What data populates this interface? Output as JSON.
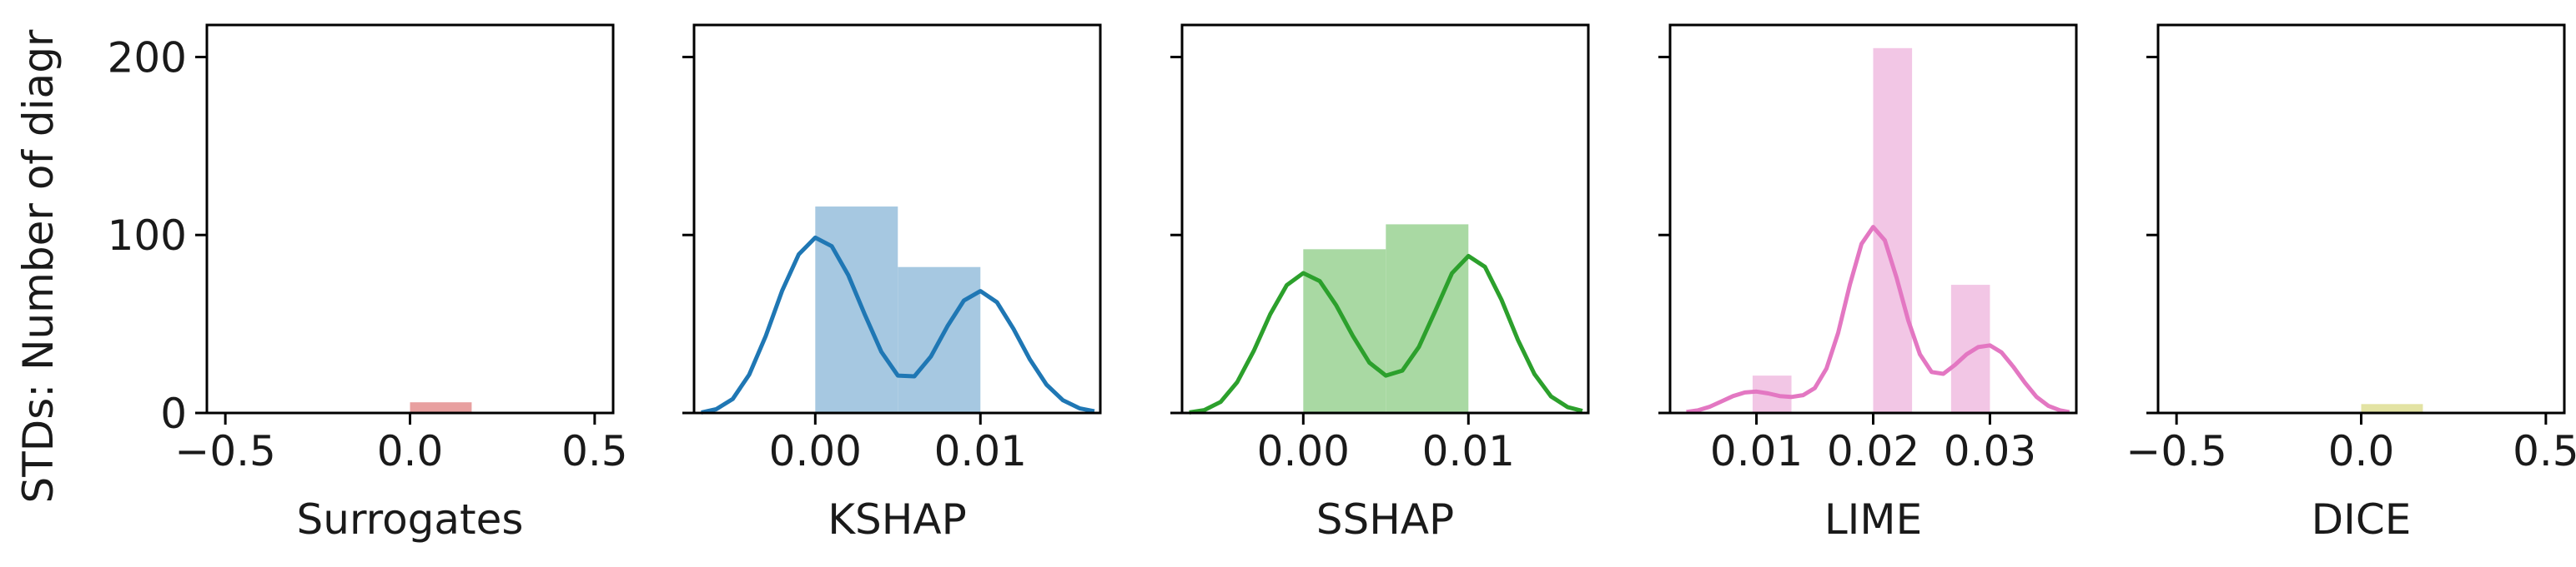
{
  "ylabel": "STDs: Number of diagr",
  "chart_data": [
    {
      "type": "bar",
      "xlabel": "Surrogates",
      "xlim": [
        -0.55,
        0.55
      ],
      "ylim": [
        0,
        218
      ],
      "xticks": [
        -0.5,
        0.0,
        0.5
      ],
      "xtick_labels": [
        "−0.5",
        "0.0",
        "0.5"
      ],
      "yticks": [
        0,
        100,
        200
      ],
      "ytick_labels": [
        "0",
        "100",
        "200"
      ],
      "bins": [
        {
          "x0": 0.0,
          "x1": 0.167,
          "count": 6
        }
      ],
      "bar_color": "#e8a0a0",
      "kde": [],
      "kde_color": ""
    },
    {
      "type": "bar",
      "xlabel": "KSHAP",
      "xlim": [
        -0.00734,
        0.01726
      ],
      "ylim": [
        0,
        218
      ],
      "xticks": [
        0.0,
        0.01
      ],
      "xtick_labels": [
        "0.00",
        "0.01"
      ],
      "yticks": [
        0,
        100,
        200
      ],
      "ytick_labels": [
        "",
        "",
        ""
      ],
      "bins": [
        {
          "x0": 0.0,
          "x1": 0.005,
          "count": 116
        },
        {
          "x0": 0.005,
          "x1": 0.01,
          "count": 82
        }
      ],
      "bar_color": "#a6c8e1",
      "kde": [
        [
          -0.0069,
          0.3
        ],
        [
          -0.006,
          2.1
        ],
        [
          -0.005,
          7.8
        ],
        [
          -0.004,
          21.5
        ],
        [
          -0.003,
          43.2
        ],
        [
          -0.002,
          68.8
        ],
        [
          -0.001,
          89.1
        ],
        [
          0.0,
          98.5
        ],
        [
          0.001,
          93.7
        ],
        [
          0.002,
          77.4
        ],
        [
          0.003,
          55.3
        ],
        [
          0.004,
          34.4
        ],
        [
          0.005,
          21.0
        ],
        [
          0.006,
          20.6
        ],
        [
          0.007,
          31.7
        ],
        [
          0.008,
          48.7
        ],
        [
          0.009,
          63.2
        ],
        [
          0.01,
          68.5
        ],
        [
          0.011,
          62.2
        ],
        [
          0.012,
          47.3
        ],
        [
          0.013,
          30.0
        ],
        [
          0.014,
          15.9
        ],
        [
          0.015,
          7.1
        ],
        [
          0.016,
          2.6
        ],
        [
          0.0169,
          1.0
        ]
      ],
      "kde_color": "#1f77b4"
    },
    {
      "type": "bar",
      "xlabel": "SSHAP",
      "xlim": [
        -0.00734,
        0.01726
      ],
      "ylim": [
        0,
        218
      ],
      "xticks": [
        0.0,
        0.01
      ],
      "xtick_labels": [
        "0.00",
        "0.01"
      ],
      "yticks": [
        0,
        100,
        200
      ],
      "ytick_labels": [
        "",
        "",
        ""
      ],
      "bins": [
        {
          "x0": 0.0,
          "x1": 0.005,
          "count": 92
        },
        {
          "x0": 0.005,
          "x1": 0.01,
          "count": 106
        }
      ],
      "bar_color": "#a9d9a3",
      "kde": [
        [
          -0.0069,
          0.3
        ],
        [
          -0.006,
          1.6
        ],
        [
          -0.005,
          6.2
        ],
        [
          -0.004,
          17.3
        ],
        [
          -0.003,
          34.8
        ],
        [
          -0.002,
          55.5
        ],
        [
          -0.001,
          71.8
        ],
        [
          0.0,
          78.6
        ],
        [
          0.001,
          74.1
        ],
        [
          0.002,
          60.4
        ],
        [
          0.003,
          43.3
        ],
        [
          0.004,
          28.3
        ],
        [
          0.005,
          21.0
        ],
        [
          0.006,
          23.8
        ],
        [
          0.007,
          37.1
        ],
        [
          0.008,
          57.5
        ],
        [
          0.009,
          78.5
        ],
        [
          0.01,
          88.2
        ],
        [
          0.011,
          82.1
        ],
        [
          0.012,
          63.6
        ],
        [
          0.013,
          41.0
        ],
        [
          0.014,
          21.8
        ],
        [
          0.015,
          9.3
        ],
        [
          0.016,
          3.3
        ],
        [
          0.0169,
          1.1
        ]
      ],
      "kde_color": "#2ca02c"
    },
    {
      "type": "bar",
      "xlabel": "LIME",
      "xlim": [
        0.0026,
        0.0374
      ],
      "ylim": [
        0,
        218
      ],
      "xticks": [
        0.01,
        0.02,
        0.03
      ],
      "xtick_labels": [
        "0.01",
        "0.02",
        "0.03"
      ],
      "yticks": [
        0,
        100,
        200
      ],
      "ytick_labels": [
        "",
        "",
        ""
      ],
      "bins": [
        {
          "x0": 0.00967,
          "x1": 0.013,
          "count": 21
        },
        {
          "x0": 0.02,
          "x1": 0.02333,
          "count": 205
        },
        {
          "x0": 0.02667,
          "x1": 0.03,
          "count": 72
        }
      ],
      "bar_color": "#f2c6e5",
      "kde": [
        [
          0.004,
          0.5
        ],
        [
          0.005,
          1.5
        ],
        [
          0.006,
          3.5
        ],
        [
          0.007,
          6.5
        ],
        [
          0.008,
          9.5
        ],
        [
          0.009,
          11.5
        ],
        [
          0.01,
          12.0
        ],
        [
          0.011,
          11.0
        ],
        [
          0.012,
          9.5
        ],
        [
          0.013,
          9.0
        ],
        [
          0.014,
          10.0
        ],
        [
          0.015,
          14.0
        ],
        [
          0.016,
          25.0
        ],
        [
          0.017,
          45.0
        ],
        [
          0.018,
          72.0
        ],
        [
          0.019,
          95.0
        ],
        [
          0.02,
          104.5
        ],
        [
          0.021,
          97.0
        ],
        [
          0.022,
          76.0
        ],
        [
          0.023,
          52.0
        ],
        [
          0.024,
          33.0
        ],
        [
          0.025,
          23.0
        ],
        [
          0.026,
          22.0
        ],
        [
          0.027,
          27.0
        ],
        [
          0.028,
          33.0
        ],
        [
          0.029,
          37.0
        ],
        [
          0.03,
          38.0
        ],
        [
          0.031,
          34.0
        ],
        [
          0.032,
          26.0
        ],
        [
          0.033,
          17.0
        ],
        [
          0.034,
          9.0
        ],
        [
          0.035,
          4.0
        ],
        [
          0.036,
          1.5
        ],
        [
          0.0368,
          0.5
        ]
      ],
      "kde_color": "#e377c2"
    },
    {
      "type": "bar",
      "xlabel": "DICE",
      "xlim": [
        -0.55,
        0.55
      ],
      "ylim": [
        0,
        218
      ],
      "xticks": [
        -0.5,
        0.0,
        0.5
      ],
      "xtick_labels": [
        "−0.5",
        "0.0",
        "0.5"
      ],
      "yticks": [
        0,
        100,
        200
      ],
      "ytick_labels": [
        "",
        "",
        ""
      ],
      "bins": [
        {
          "x0": 0.0,
          "x1": 0.167,
          "count": 5
        }
      ],
      "bar_color": "#e3e3a3",
      "kde": [],
      "kde_color": ""
    }
  ]
}
